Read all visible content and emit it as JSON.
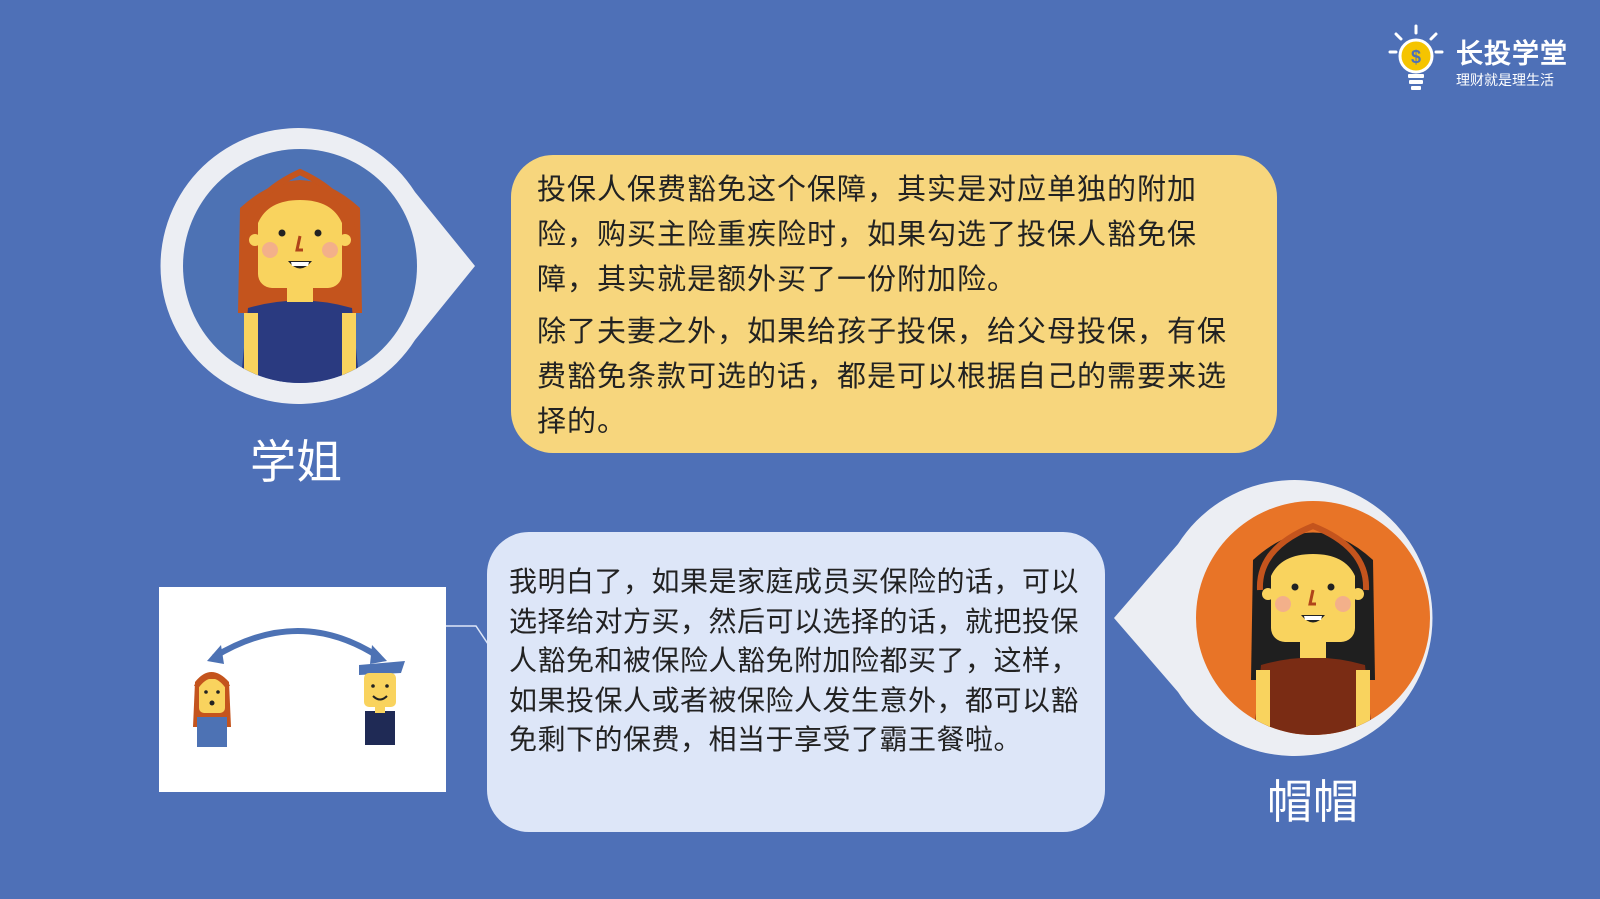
{
  "brand": {
    "name": "长投学堂",
    "slogan": "理财就是理生活",
    "accent": "#f5c400"
  },
  "speakers": {
    "top": {
      "name": "学姐",
      "ring_color": "#4d72b4",
      "hair_color": "#c4541d"
    },
    "bottom": {
      "name": "帽帽",
      "ring_color": "#e87427",
      "hair_color": "#1f1f1f"
    }
  },
  "dialogue": {
    "top": {
      "paragraph_1": "投保人保费豁免这个保障，其实是对应单独的附加险，购买主险重疾险时，如果勾选了投保人豁免保障，其实就是额外买了一份附加险。",
      "paragraph_2": "除了夫妻之外，如果给孩子投保，给父母投保，有保费豁免条款可选的话，都是可以根据自己的需要来选择的。"
    },
    "bottom": {
      "text": "我明白了，如果是家庭成员买保险的话，可以选择给对方买，然后可以选择的话，就把投保人豁免和被保险人豁免附加险都买了，这样，如果投保人或者被保险人发生意外，都可以豁免剩下的保费，相当于享受了霸王餐啦。"
    }
  },
  "colors": {
    "background": "#4e70b7",
    "bubble_top": "#f7d67d",
    "bubble_bottom": "#dde6f8"
  }
}
